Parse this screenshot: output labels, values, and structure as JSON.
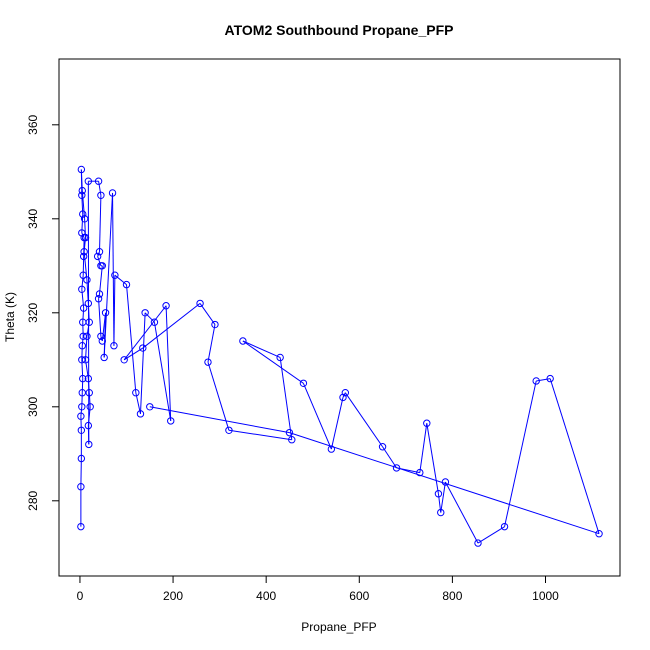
{
  "chart_data": {
    "type": "scatter",
    "title": "ATOM2 Southbound Propane_PFP",
    "xlabel": "Propane_PFP",
    "ylabel": "Theta (K)",
    "xlim": [
      -45,
      1160
    ],
    "ylim": [
      264,
      374
    ],
    "x_ticks": [
      0,
      200,
      400,
      600,
      800,
      1000
    ],
    "y_ticks": [
      280,
      300,
      320,
      340,
      360
    ],
    "style": "points joined by lines (type o), open circles",
    "series": [
      {
        "color": "#0000ff",
        "points": [
          [
            2,
            274.5
          ],
          [
            2,
            283
          ],
          [
            3,
            289
          ],
          [
            3,
            295
          ],
          [
            2,
            298
          ],
          [
            4,
            300
          ],
          [
            5,
            303
          ],
          [
            6,
            306
          ],
          [
            4,
            310
          ],
          [
            5,
            313
          ],
          [
            7,
            315
          ],
          [
            6,
            318
          ],
          [
            8,
            321
          ],
          [
            4,
            325
          ],
          [
            7,
            328
          ],
          [
            8,
            332
          ],
          [
            9,
            336
          ],
          [
            4,
            337
          ],
          [
            6,
            341
          ],
          [
            4,
            345
          ],
          [
            3,
            350.5
          ],
          [
            5,
            346
          ],
          [
            10,
            340
          ],
          [
            12,
            336
          ],
          [
            9,
            333
          ],
          [
            15,
            327
          ],
          [
            18,
            322
          ],
          [
            20,
            318
          ],
          [
            15,
            315
          ],
          [
            12,
            310
          ],
          [
            18,
            306
          ],
          [
            20,
            303
          ],
          [
            22,
            300
          ],
          [
            18,
            296
          ],
          [
            19,
            292
          ],
          [
            18,
            348
          ],
          [
            40,
            348
          ],
          [
            45,
            345
          ],
          [
            42,
            333
          ],
          [
            38,
            332
          ],
          [
            45,
            330
          ],
          [
            48,
            330
          ],
          [
            42,
            324
          ],
          [
            40,
            323
          ],
          [
            45,
            315
          ],
          [
            48,
            314
          ],
          [
            55,
            320
          ],
          [
            52,
            310.5
          ],
          [
            70,
            345.5
          ],
          [
            73,
            313
          ],
          [
            75,
            328
          ],
          [
            100,
            326
          ],
          [
            120,
            303
          ],
          [
            130,
            298.5
          ],
          [
            140,
            320
          ],
          [
            160,
            318
          ],
          [
            195,
            297
          ],
          [
            185,
            321.5
          ],
          [
            95,
            310
          ],
          [
            135,
            312.5
          ],
          [
            258,
            322
          ],
          [
            290,
            317.5
          ],
          [
            275,
            309.5
          ],
          [
            320,
            295
          ],
          [
            455,
            293
          ],
          [
            430,
            310.5
          ],
          [
            350,
            314
          ],
          [
            480,
            305
          ],
          [
            540,
            291
          ],
          [
            565,
            302
          ],
          [
            570,
            303
          ],
          [
            650,
            291.5
          ],
          [
            680,
            287
          ],
          [
            730,
            286
          ],
          [
            745,
            296.5
          ],
          [
            770,
            281.5
          ],
          [
            775,
            277.5
          ],
          [
            785,
            284
          ],
          [
            855,
            271
          ],
          [
            912,
            274.5
          ],
          [
            980,
            305.5
          ],
          [
            1010,
            306
          ],
          [
            1115,
            273
          ],
          [
            450,
            294.5
          ],
          [
            150,
            300
          ]
        ]
      }
    ]
  }
}
